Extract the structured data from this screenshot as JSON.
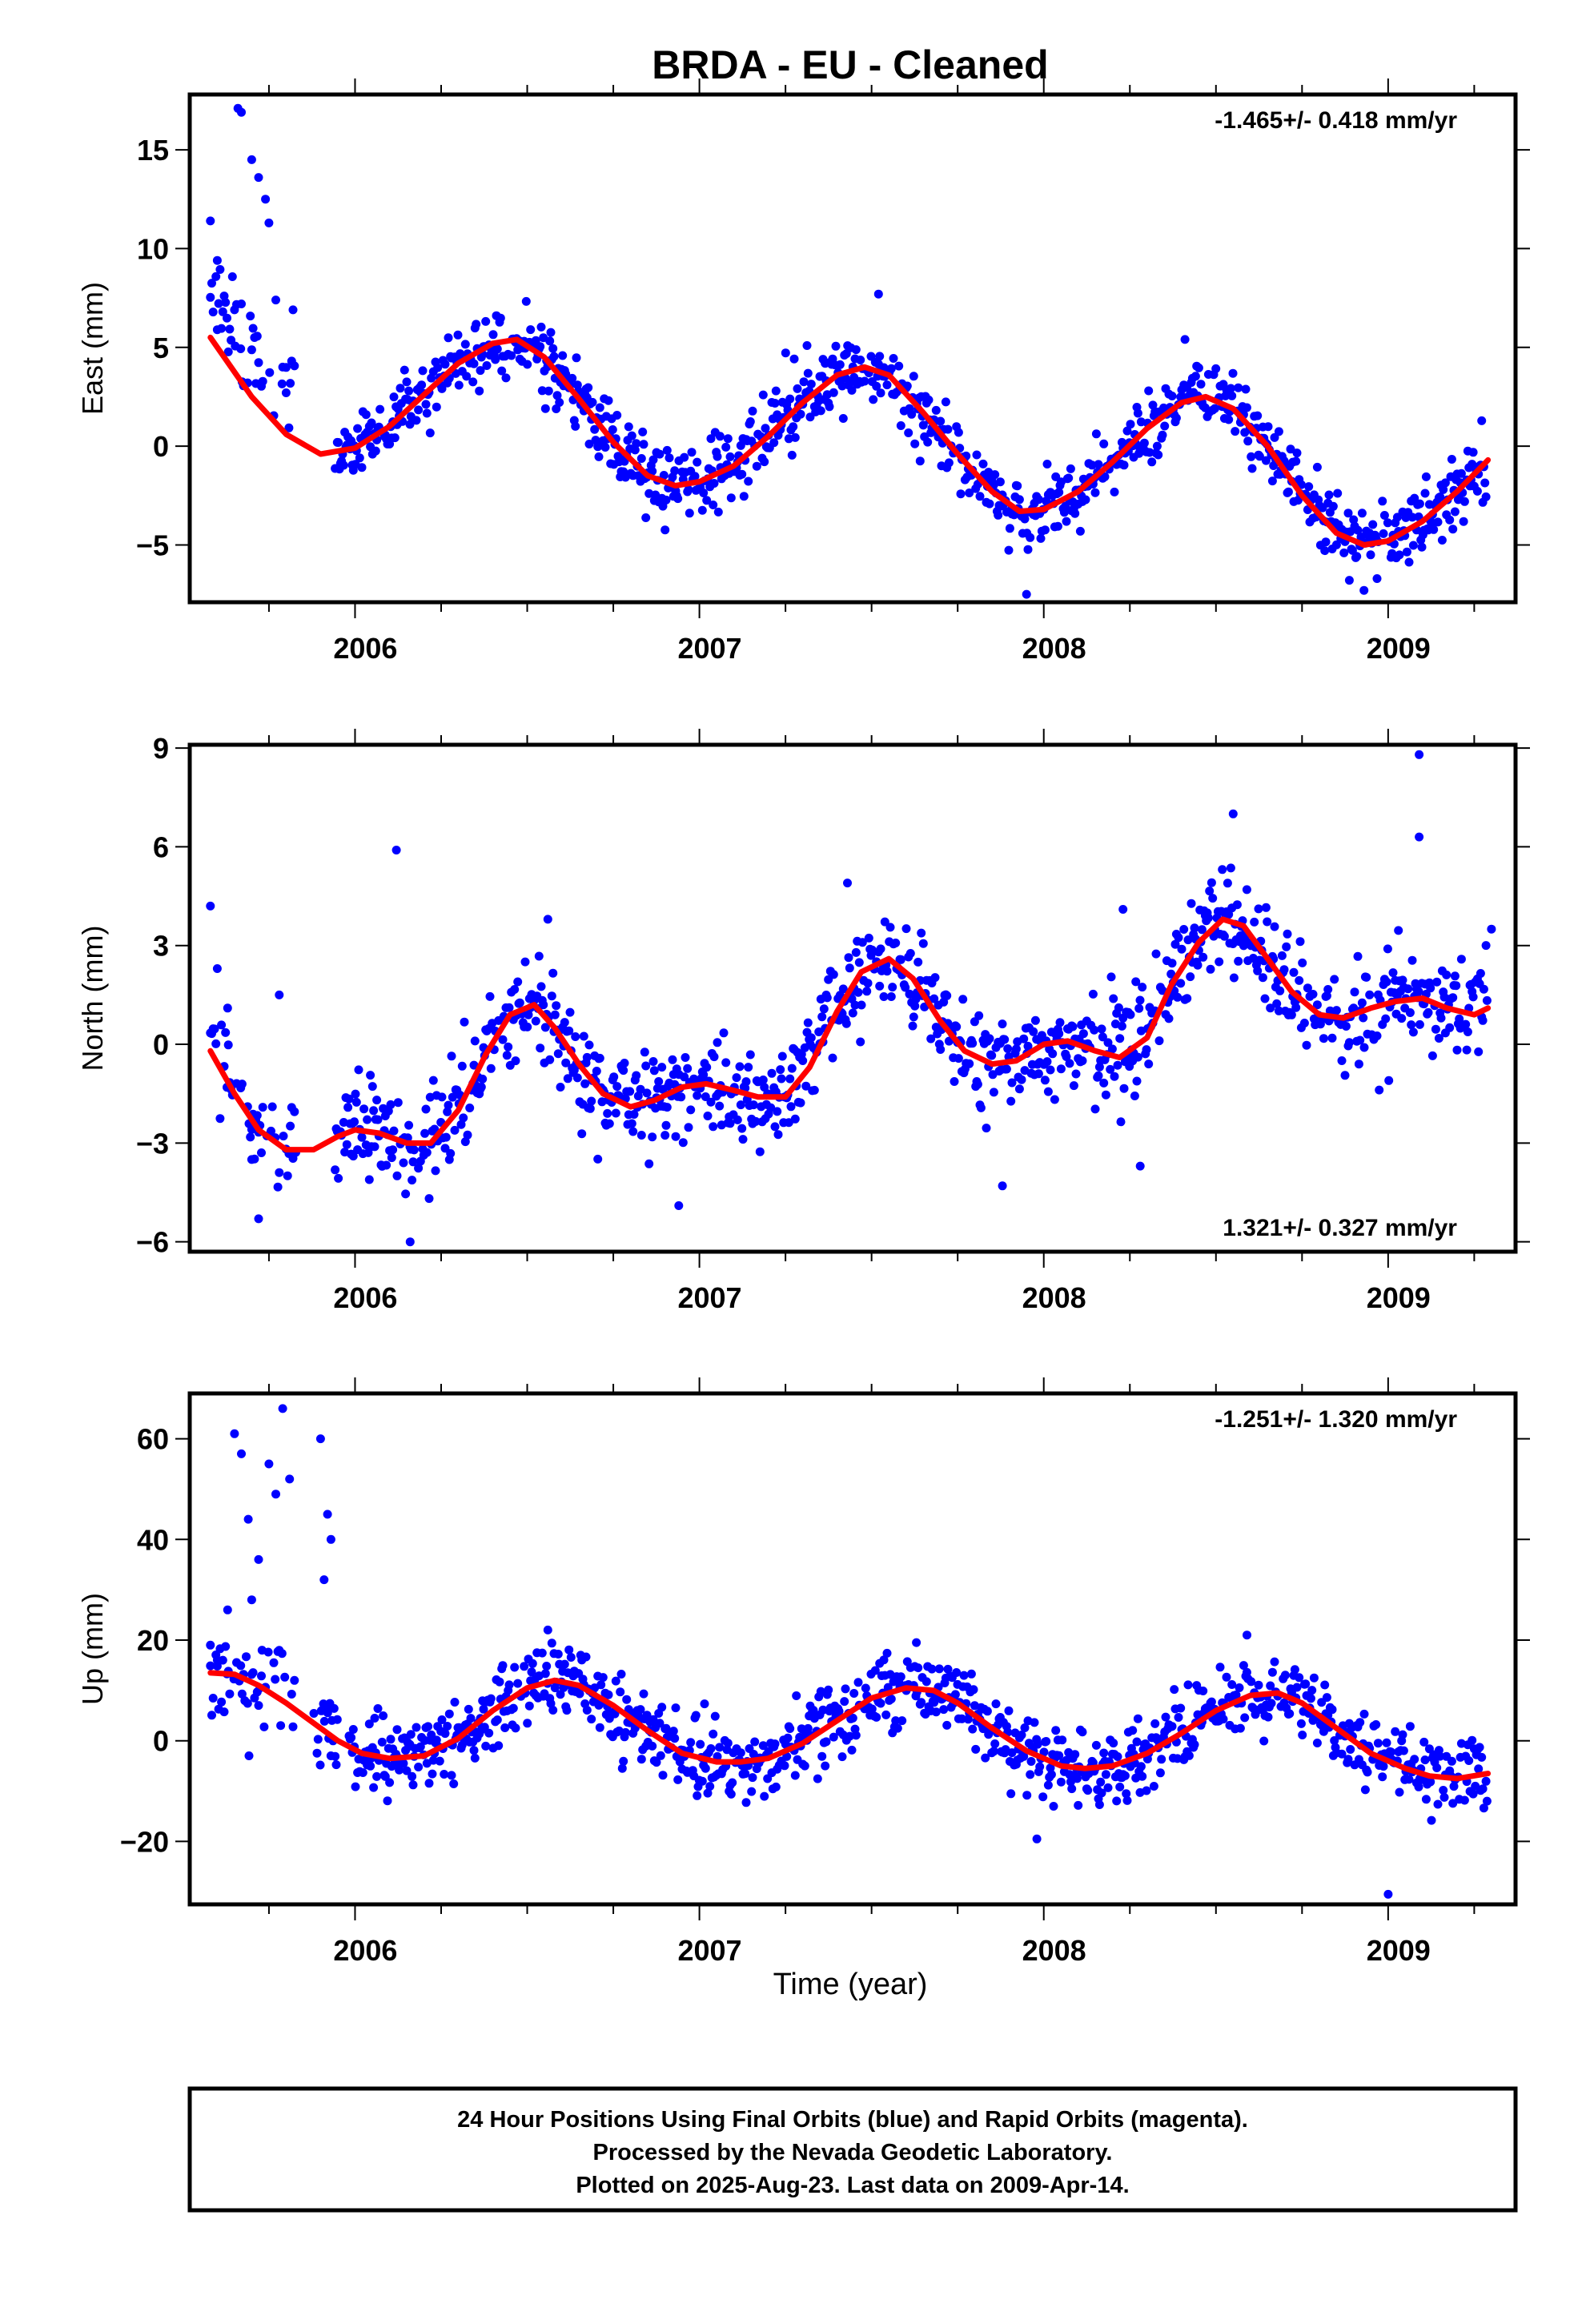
{
  "title": "BRDA  - EU - Cleaned",
  "xlabel": "Time (year)",
  "footer": {
    "line1": "24 Hour Positions Using Final Orbits (blue) and Rapid Orbits (magenta).",
    "line2": "Processed by the Nevada Geodetic Laboratory.",
    "line3": "Plotted on 2025-Aug-23. Last data on 2009-Apr-14."
  },
  "colors": {
    "points": "#0000ff",
    "fit": "#ff0000"
  },
  "chart_data": [
    {
      "type": "scatter",
      "ylabel": "East (mm)",
      "rate": "-1.465+/- 0.418 mm/yr",
      "rate_position": "top-right",
      "xlim": [
        2005.52,
        2009.37
      ],
      "ylim": [
        -7.9,
        17.8
      ],
      "yticks": [
        15,
        10,
        5,
        0,
        -5
      ],
      "xticks": [
        2006,
        2007,
        2008,
        2009
      ],
      "fit_curve": {
        "x": [
          2005.58,
          2005.7,
          2005.8,
          2005.9,
          2006.0,
          2006.1,
          2006.2,
          2006.3,
          2006.4,
          2006.47,
          2006.55,
          2006.65,
          2006.75,
          2006.85,
          2006.93,
          2007.0,
          2007.1,
          2007.2,
          2007.3,
          2007.4,
          2007.48,
          2007.55,
          2007.65,
          2007.75,
          2007.85,
          2007.93,
          2008.0,
          2008.1,
          2008.2,
          2008.3,
          2008.4,
          2008.47,
          2008.55,
          2008.65,
          2008.75,
          2008.85,
          2008.93,
          2009.0,
          2009.1,
          2009.2,
          2009.29
        ],
        "y": [
          5.5,
          2.5,
          0.6,
          -0.4,
          -0.1,
          1.0,
          2.6,
          4.2,
          5.2,
          5.4,
          4.5,
          2.4,
          0.2,
          -1.5,
          -2.0,
          -1.8,
          -1.0,
          0.5,
          2.2,
          3.6,
          4.0,
          3.6,
          1.7,
          -0.4,
          -2.3,
          -3.3,
          -3.2,
          -2.3,
          -0.8,
          0.9,
          2.2,
          2.5,
          1.9,
          0.0,
          -2.5,
          -4.4,
          -5.0,
          -4.8,
          -3.8,
          -2.3,
          -0.7
        ]
      },
      "series_spec": {
        "amplitude": 3.7,
        "phase": 4.15,
        "trend_start": 1.47,
        "trend_rate": -1.465,
        "noise": 0.9,
        "seed": 11
      },
      "points_sample": [
        [
          2005.58,
          11.4
        ],
        [
          2005.6,
          9.4
        ],
        [
          2005.62,
          7.6
        ],
        [
          2005.65,
          6.9
        ],
        [
          2005.67,
          7.2
        ],
        [
          2005.7,
          14.5
        ],
        [
          2005.72,
          13.6
        ],
        [
          2005.74,
          12.5
        ],
        [
          2005.66,
          17.1
        ],
        [
          2005.67,
          16.9
        ],
        [
          2005.75,
          11.3
        ],
        [
          2005.77,
          7.4
        ],
        [
          2005.79,
          4.0
        ],
        [
          2005.8,
          2.7
        ],
        [
          2005.82,
          6.9
        ],
        [
          2007.06,
          0.5
        ],
        [
          2007.52,
          7.7
        ],
        [
          2007.95,
          -7.5
        ],
        [
          2008.41,
          5.4
        ],
        [
          2008.93,
          -7.3
        ]
      ],
      "gaps": [
        [
          2005.83,
          2005.94
        ]
      ]
    },
    {
      "type": "scatter",
      "ylabel": "North (mm)",
      "rate": "1.321+/- 0.327 mm/yr",
      "rate_position": "bottom-right",
      "xlim": [
        2005.52,
        2009.37
      ],
      "ylim": [
        -6.3,
        9.1
      ],
      "yticks": [
        9,
        6,
        3,
        0,
        -3,
        -6
      ],
      "xticks": [
        2006,
        2007,
        2008,
        2009
      ],
      "fit_curve": {
        "x": [
          2005.58,
          2005.65,
          2005.72,
          2005.8,
          2005.88,
          2005.95,
          2006.0,
          2006.07,
          2006.15,
          2006.22,
          2006.3,
          2006.38,
          2006.45,
          2006.52,
          2006.58,
          2006.65,
          2006.72,
          2006.8,
          2006.87,
          2006.95,
          2007.02,
          2007.1,
          2007.17,
          2007.25,
          2007.32,
          2007.4,
          2007.47,
          2007.55,
          2007.62,
          2007.7,
          2007.77,
          2007.85,
          2007.92,
          2008.0,
          2008.07,
          2008.15,
          2008.22,
          2008.3,
          2008.37,
          2008.45,
          2008.52,
          2008.58,
          2008.65,
          2008.72,
          2008.8,
          2008.87,
          2008.95,
          2009.02,
          2009.1,
          2009.17,
          2009.25,
          2009.29
        ],
        "y": [
          -0.2,
          -1.5,
          -2.6,
          -3.2,
          -3.2,
          -2.8,
          -2.6,
          -2.7,
          -3.0,
          -3.0,
          -2.0,
          -0.3,
          0.9,
          1.2,
          0.5,
          -0.6,
          -1.5,
          -1.9,
          -1.7,
          -1.3,
          -1.2,
          -1.4,
          -1.6,
          -1.6,
          -0.7,
          1.0,
          2.2,
          2.6,
          2.0,
          0.7,
          -0.2,
          -0.6,
          -0.5,
          0.0,
          0.1,
          -0.2,
          -0.4,
          0.2,
          1.8,
          3.1,
          3.8,
          3.6,
          2.6,
          1.6,
          0.9,
          0.8,
          1.1,
          1.3,
          1.4,
          1.1,
          0.9,
          1.1
        ]
      },
      "series_spec": {
        "amplitude": 0.0,
        "phase": 0.0,
        "trend_start": 0.0,
        "trend_rate": 0.0,
        "noise": 0.75,
        "seed": 23
      },
      "points_sample": [
        [
          2005.58,
          4.2
        ],
        [
          2005.6,
          2.3
        ],
        [
          2005.63,
          1.1
        ],
        [
          2005.7,
          -3.5
        ],
        [
          2005.72,
          -5.3
        ],
        [
          2005.78,
          1.5
        ],
        [
          2006.12,
          5.9
        ],
        [
          2006.16,
          -6.0
        ],
        [
          2006.56,
          3.8
        ],
        [
          2006.94,
          -4.9
        ],
        [
          2007.43,
          4.9
        ],
        [
          2007.88,
          -4.3
        ],
        [
          2008.23,
          4.1
        ],
        [
          2008.28,
          -3.7
        ],
        [
          2008.55,
          7.0
        ],
        [
          2009.09,
          8.8
        ],
        [
          2009.09,
          6.3
        ],
        [
          2009.3,
          3.5
        ]
      ],
      "gaps": [
        [
          2005.83,
          2005.94
        ]
      ]
    },
    {
      "type": "scatter",
      "ylabel": "Up (mm)",
      "rate": "-1.251+/- 1.320 mm/yr",
      "rate_position": "top-right",
      "xlim": [
        2005.52,
        2009.37
      ],
      "ylim": [
        -32.5,
        69
      ],
      "yticks": [
        60,
        40,
        20,
        0,
        -20
      ],
      "xticks": [
        2006,
        2007,
        2008,
        2009
      ],
      "fit_curve": {
        "x": [
          2005.58,
          2005.65,
          2005.72,
          2005.8,
          2005.88,
          2005.95,
          2006.02,
          2006.1,
          2006.2,
          2006.3,
          2006.4,
          2006.5,
          2006.58,
          2006.65,
          2006.75,
          2006.85,
          2006.95,
          2007.05,
          2007.12,
          2007.2,
          2007.3,
          2007.4,
          2007.5,
          2007.6,
          2007.68,
          2007.75,
          2007.85,
          2007.95,
          2008.05,
          2008.12,
          2008.2,
          2008.3,
          2008.4,
          2008.5,
          2008.6,
          2008.68,
          2008.75,
          2008.85,
          2008.95,
          2009.05,
          2009.12,
          2009.2,
          2009.29
        ],
        "y": [
          13.5,
          13.2,
          11.0,
          7.5,
          3.5,
          0.0,
          -2.5,
          -3.5,
          -3.0,
          0.5,
          6.0,
          10.5,
          12.0,
          11.0,
          7.0,
          2.0,
          -2.5,
          -4.2,
          -4.2,
          -3.5,
          -0.5,
          4.0,
          8.5,
          10.5,
          10.0,
          7.5,
          2.5,
          -2.0,
          -5.0,
          -5.5,
          -5.0,
          -2.5,
          1.5,
          6.0,
          9.0,
          9.5,
          7.5,
          2.5,
          -2.5,
          -5.5,
          -7.0,
          -7.5,
          -6.5
        ]
      },
      "series_spec": {
        "amplitude": 0.0,
        "phase": 0.0,
        "trend_start": 0.0,
        "trend_rate": 0.0,
        "noise": 3.6,
        "seed": 37
      },
      "points_sample": [
        [
          2005.58,
          19.0
        ],
        [
          2005.6,
          16.0
        ],
        [
          2005.63,
          26.0
        ],
        [
          2005.65,
          61.0
        ],
        [
          2005.67,
          57.0
        ],
        [
          2005.69,
          44.0
        ],
        [
          2005.7,
          28.0
        ],
        [
          2005.72,
          36.0
        ],
        [
          2005.73,
          18.0
        ],
        [
          2005.75,
          55.0
        ],
        [
          2005.77,
          49.0
        ],
        [
          2005.79,
          66.0
        ],
        [
          2005.81,
          52.0
        ],
        [
          2005.9,
          60.0
        ],
        [
          2005.92,
          45.0
        ],
        [
          2005.93,
          40.0
        ],
        [
          2005.91,
          32.0
        ],
        [
          2006.56,
          22.0
        ],
        [
          2007.63,
          19.5
        ],
        [
          2007.98,
          -19.5
        ],
        [
          2008.59,
          21.0
        ],
        [
          2009.0,
          -30.5
        ]
      ],
      "gaps": [
        [
          2005.83,
          2005.88
        ],
        [
          2005.95,
          2005.98
        ]
      ]
    }
  ]
}
